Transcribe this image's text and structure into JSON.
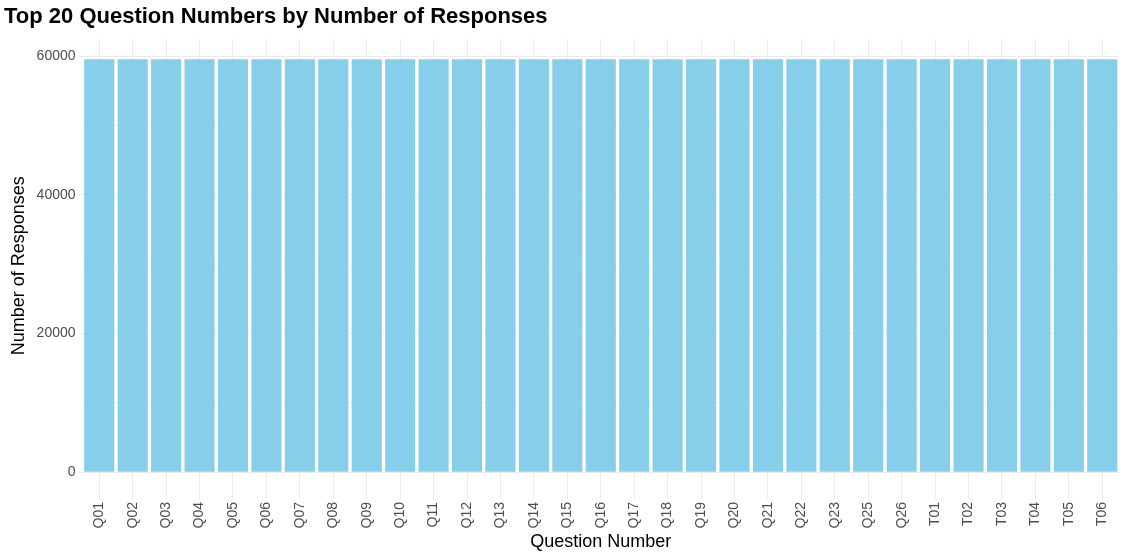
{
  "chart_data": {
    "type": "bar",
    "title": "Top 20 Question Numbers by Number of Responses",
    "xlabel": "Question Number",
    "ylabel": "Number of Responses",
    "categories": [
      "Q01",
      "Q02",
      "Q03",
      "Q04",
      "Q05",
      "Q06",
      "Q07",
      "Q08",
      "Q09",
      "Q10",
      "Q11",
      "Q12",
      "Q13",
      "Q14",
      "Q15",
      "Q16",
      "Q17",
      "Q18",
      "Q19",
      "Q20",
      "Q21",
      "Q22",
      "Q23",
      "Q25",
      "Q26",
      "T01",
      "T02",
      "T03",
      "T04",
      "T05",
      "T06"
    ],
    "values": [
      59600,
      59600,
      59600,
      59600,
      59600,
      59600,
      59600,
      59600,
      59600,
      59600,
      59600,
      59600,
      59600,
      59600,
      59600,
      59600,
      59600,
      59600,
      59600,
      59600,
      59600,
      59600,
      59600,
      59600,
      59600,
      59600,
      59600,
      59600,
      59600,
      59600,
      59600
    ],
    "color": "#87ceeb",
    "ylim": [
      -3000,
      62600
    ],
    "yticks": [
      0,
      20000,
      40000,
      60000
    ],
    "grid": true
  }
}
